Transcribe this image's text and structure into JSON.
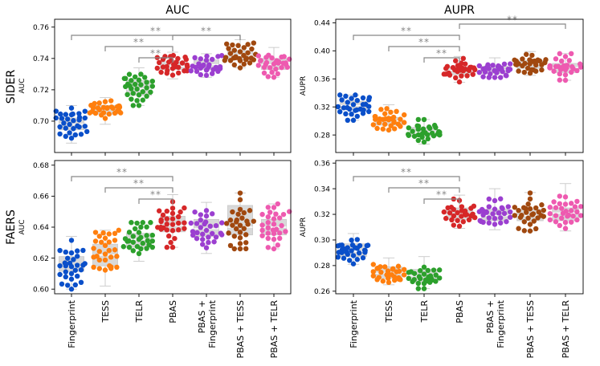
{
  "categories": [
    "Fingerprint",
    "TESS",
    "TELR",
    "PBAS",
    "PBAS +\nFingerprint",
    "PBAS + TESS",
    "PBAS + TELR"
  ],
  "colors": [
    "#0a4fc9",
    "#ff7f0e",
    "#2ca02c",
    "#d62728",
    "#9b3fd0",
    "#a0480f",
    "#ee5ab0"
  ],
  "column_titles": [
    "AUC",
    "AUPR"
  ],
  "row_titles": [
    "SIDER",
    "FAERS"
  ],
  "significance_label": "**",
  "chart_data": [
    {
      "type": "box-swarm",
      "id": "sider-auc",
      "dataset": "SIDER",
      "metric": "AUC",
      "ylabel": "AUC",
      "ylim": [
        0.68,
        0.765
      ],
      "yticks": [
        0.7,
        0.72,
        0.74,
        0.76
      ],
      "tick_decimals": 2,
      "boxes": [
        {
          "q1": 0.6945,
          "median": 0.698,
          "q3": 0.702,
          "wlow": 0.686,
          "whigh": 0.71
        },
        {
          "q1": 0.7045,
          "median": 0.708,
          "q3": 0.71,
          "wlow": 0.698,
          "whigh": 0.715
        },
        {
          "q1": 0.7165,
          "median": 0.7205,
          "q3": 0.726,
          "wlow": 0.71,
          "whigh": 0.734
        },
        {
          "q1": 0.733,
          "median": 0.735,
          "q3": 0.738,
          "wlow": 0.727,
          "whigh": 0.744
        },
        {
          "q1": 0.733,
          "median": 0.736,
          "q3": 0.739,
          "wlow": 0.728,
          "whigh": 0.743
        },
        {
          "q1": 0.739,
          "median": 0.742,
          "q3": 0.745,
          "wlow": 0.734,
          "whigh": 0.752
        },
        {
          "q1": 0.733,
          "median": 0.736,
          "q3": 0.74,
          "wlow": 0.728,
          "whigh": 0.747
        }
      ],
      "spread": [
        0.0045,
        0.0035,
        0.0055,
        0.0035,
        0.0035,
        0.004,
        0.0038
      ],
      "significance": [
        {
          "from": 0,
          "to": 5,
          "level": 2
        },
        {
          "from": 1,
          "to": 3,
          "level": 1
        },
        {
          "from": 2,
          "to": 3,
          "level": 0
        },
        {
          "from": 3,
          "to": 5,
          "level": 2
        }
      ]
    },
    {
      "type": "box-swarm",
      "id": "sider-aupr",
      "dataset": "SIDER",
      "metric": "AUPR",
      "ylabel": "AUPR",
      "ylim": [
        0.255,
        0.445
      ],
      "yticks": [
        0.28,
        0.32,
        0.36,
        0.4,
        0.44
      ],
      "tick_decimals": 2,
      "boxes": [
        {
          "q1": 0.316,
          "median": 0.322,
          "q3": 0.328,
          "wlow": 0.301,
          "whigh": 0.337
        },
        {
          "q1": 0.294,
          "median": 0.3,
          "q3": 0.305,
          "wlow": 0.287,
          "whigh": 0.323
        },
        {
          "q1": 0.278,
          "median": 0.284,
          "q3": 0.291,
          "wlow": 0.267,
          "whigh": 0.302
        },
        {
          "q1": 0.366,
          "median": 0.372,
          "q3": 0.377,
          "wlow": 0.355,
          "whigh": 0.392
        },
        {
          "q1": 0.368,
          "median": 0.373,
          "q3": 0.378,
          "wlow": 0.362,
          "whigh": 0.39
        },
        {
          "q1": 0.375,
          "median": 0.381,
          "q3": 0.386,
          "wlow": 0.365,
          "whigh": 0.399
        },
        {
          "q1": 0.369,
          "median": 0.376,
          "q3": 0.382,
          "wlow": 0.358,
          "whigh": 0.396
        }
      ],
      "spread": [
        0.009,
        0.009,
        0.01,
        0.009,
        0.007,
        0.008,
        0.009
      ],
      "significance": [
        {
          "from": 0,
          "to": 3,
          "level": 2
        },
        {
          "from": 1,
          "to": 3,
          "level": 1
        },
        {
          "from": 2,
          "to": 3,
          "level": 0
        },
        {
          "from": 3,
          "to": 6,
          "level": 3
        }
      ]
    },
    {
      "type": "box-swarm",
      "id": "faers-auc",
      "dataset": "FAERS",
      "metric": "AUC",
      "ylabel": "AUC",
      "ylim": [
        0.597,
        0.683
      ],
      "yticks": [
        0.6,
        0.62,
        0.64,
        0.66,
        0.68
      ],
      "tick_decimals": 2,
      "boxes": [
        {
          "q1": 0.6115,
          "median": 0.615,
          "q3": 0.621,
          "wlow": 0.6,
          "whigh": 0.634
        },
        {
          "q1": 0.615,
          "median": 0.622,
          "q3": 0.629,
          "wlow": 0.602,
          "whigh": 0.638
        },
        {
          "q1": 0.627,
          "median": 0.632,
          "q3": 0.636,
          "wlow": 0.618,
          "whigh": 0.643
        },
        {
          "q1": 0.637,
          "median": 0.641,
          "q3": 0.647,
          "wlow": 0.627,
          "whigh": 0.661
        },
        {
          "q1": 0.634,
          "median": 0.639,
          "q3": 0.645,
          "wlow": 0.623,
          "whigh": 0.656
        },
        {
          "q1": 0.635,
          "median": 0.64,
          "q3": 0.654,
          "wlow": 0.626,
          "whigh": 0.662
        },
        {
          "q1": 0.635,
          "median": 0.64,
          "q3": 0.645,
          "wlow": 0.626,
          "whigh": 0.655
        }
      ],
      "spread": [
        0.009,
        0.009,
        0.007,
        0.008,
        0.008,
        0.009,
        0.008
      ],
      "significance": [
        {
          "from": 0,
          "to": 3,
          "level": 2
        },
        {
          "from": 1,
          "to": 3,
          "level": 1
        },
        {
          "from": 2,
          "to": 3,
          "level": 0
        }
      ]
    },
    {
      "type": "box-swarm",
      "id": "faers-aupr",
      "dataset": "FAERS",
      "metric": "AUPR",
      "ylabel": "AUPR",
      "ylim": [
        0.258,
        0.362
      ],
      "yticks": [
        0.26,
        0.28,
        0.3,
        0.32,
        0.34,
        0.36
      ],
      "tick_decimals": 2,
      "boxes": [
        {
          "q1": 0.287,
          "median": 0.291,
          "q3": 0.297,
          "wlow": 0.281,
          "whigh": 0.305
        },
        {
          "q1": 0.27,
          "median": 0.274,
          "q3": 0.279,
          "wlow": 0.265,
          "whigh": 0.286
        },
        {
          "q1": 0.267,
          "median": 0.272,
          "q3": 0.277,
          "wlow": 0.262,
          "whigh": 0.287
        },
        {
          "q1": 0.316,
          "median": 0.32,
          "q3": 0.325,
          "wlow": 0.309,
          "whigh": 0.335
        },
        {
          "q1": 0.315,
          "median": 0.319,
          "q3": 0.324,
          "wlow": 0.308,
          "whigh": 0.34
        },
        {
          "q1": 0.315,
          "median": 0.319,
          "q3": 0.324,
          "wlow": 0.307,
          "whigh": 0.337
        },
        {
          "q1": 0.315,
          "median": 0.321,
          "q3": 0.325,
          "wlow": 0.307,
          "whigh": 0.344
        }
      ],
      "spread": [
        0.005,
        0.005,
        0.005,
        0.005,
        0.006,
        0.006,
        0.006
      ],
      "significance": [
        {
          "from": 0,
          "to": 3,
          "level": 2
        },
        {
          "from": 1,
          "to": 3,
          "level": 1
        },
        {
          "from": 2,
          "to": 3,
          "level": 0
        }
      ]
    }
  ]
}
